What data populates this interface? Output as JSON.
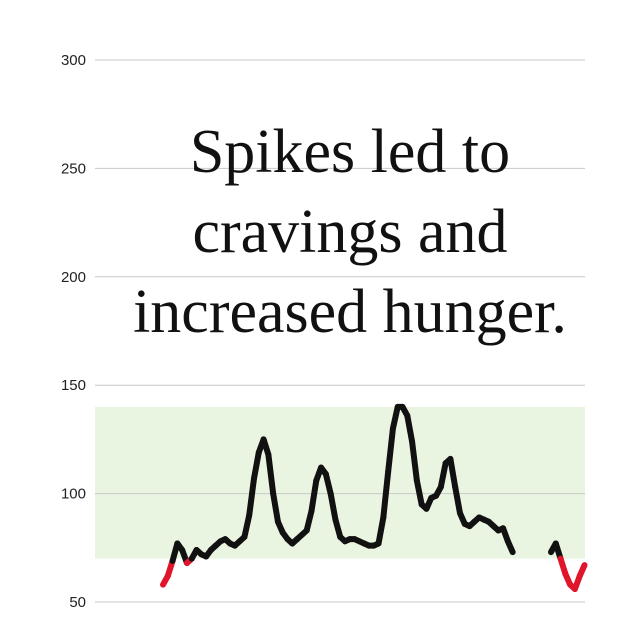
{
  "headline": {
    "lines": [
      "Spikes led to",
      "cravings and",
      "increased hunger."
    ]
  },
  "chart_data": {
    "type": "line",
    "title": "",
    "xlabel": "",
    "ylabel": "",
    "ylim": [
      50,
      300
    ],
    "yticks": [
      "300",
      "250",
      "200",
      "150",
      "100",
      "50"
    ],
    "grid": true,
    "target_band": {
      "low": 70,
      "high": 140,
      "color": "#e9f5e1"
    },
    "colors": {
      "in_range": "#111111",
      "low": "#e0142a"
    },
    "series": [
      {
        "segments": [
          [
            [
              0,
              58
            ],
            [
              2,
              62
            ],
            [
              4,
              69
            ],
            [
              6,
              77
            ],
            [
              8,
              74
            ],
            [
              10,
              68
            ],
            [
              12,
              70
            ],
            [
              14,
              74
            ],
            [
              16,
              72
            ],
            [
              18,
              71
            ],
            [
              20,
              74
            ],
            [
              22,
              76
            ],
            [
              24,
              78
            ],
            [
              26,
              79
            ],
            [
              28,
              77
            ],
            [
              30,
              76
            ],
            [
              32,
              78
            ],
            [
              34,
              80
            ],
            [
              36,
              90
            ],
            [
              38,
              107
            ],
            [
              40,
              119
            ],
            [
              42,
              125
            ],
            [
              44,
              118
            ],
            [
              46,
              100
            ],
            [
              48,
              87
            ],
            [
              50,
              82
            ],
            [
              52,
              79
            ],
            [
              54,
              77
            ],
            [
              56,
              79
            ],
            [
              58,
              81
            ],
            [
              60,
              83
            ],
            [
              62,
              92
            ],
            [
              64,
              106
            ],
            [
              66,
              112
            ],
            [
              68,
              109
            ],
            [
              70,
              100
            ],
            [
              72,
              88
            ],
            [
              74,
              80
            ],
            [
              76,
              78
            ],
            [
              78,
              79
            ],
            [
              80,
              79
            ],
            [
              82,
              78
            ],
            [
              84,
              77
            ],
            [
              86,
              76
            ],
            [
              88,
              76
            ],
            [
              90,
              77
            ],
            [
              92,
              89
            ],
            [
              94,
              110
            ],
            [
              96,
              130
            ],
            [
              98,
              140
            ],
            [
              100,
              140
            ],
            [
              102,
              136
            ],
            [
              104,
              124
            ],
            [
              106,
              106
            ],
            [
              108,
              95
            ],
            [
              110,
              93
            ],
            [
              112,
              98
            ],
            [
              114,
              99
            ],
            [
              116,
              103
            ],
            [
              118,
              114
            ],
            [
              120,
              116
            ],
            [
              122,
              103
            ],
            [
              124,
              91
            ],
            [
              126,
              86
            ],
            [
              128,
              85
            ],
            [
              130,
              87
            ],
            [
              132,
              89
            ],
            [
              134,
              88
            ],
            [
              136,
              87
            ],
            [
              138,
              85
            ],
            [
              140,
              83
            ],
            [
              142,
              84
            ],
            [
              144,
              78
            ],
            [
              146,
              73
            ]
          ],
          [
            [
              162,
              73
            ],
            [
              164,
              77
            ],
            [
              166,
              70
            ],
            [
              168,
              63
            ],
            [
              170,
              58
            ],
            [
              172,
              56
            ],
            [
              174,
              62
            ],
            [
              176,
              67
            ]
          ]
        ]
      }
    ]
  }
}
